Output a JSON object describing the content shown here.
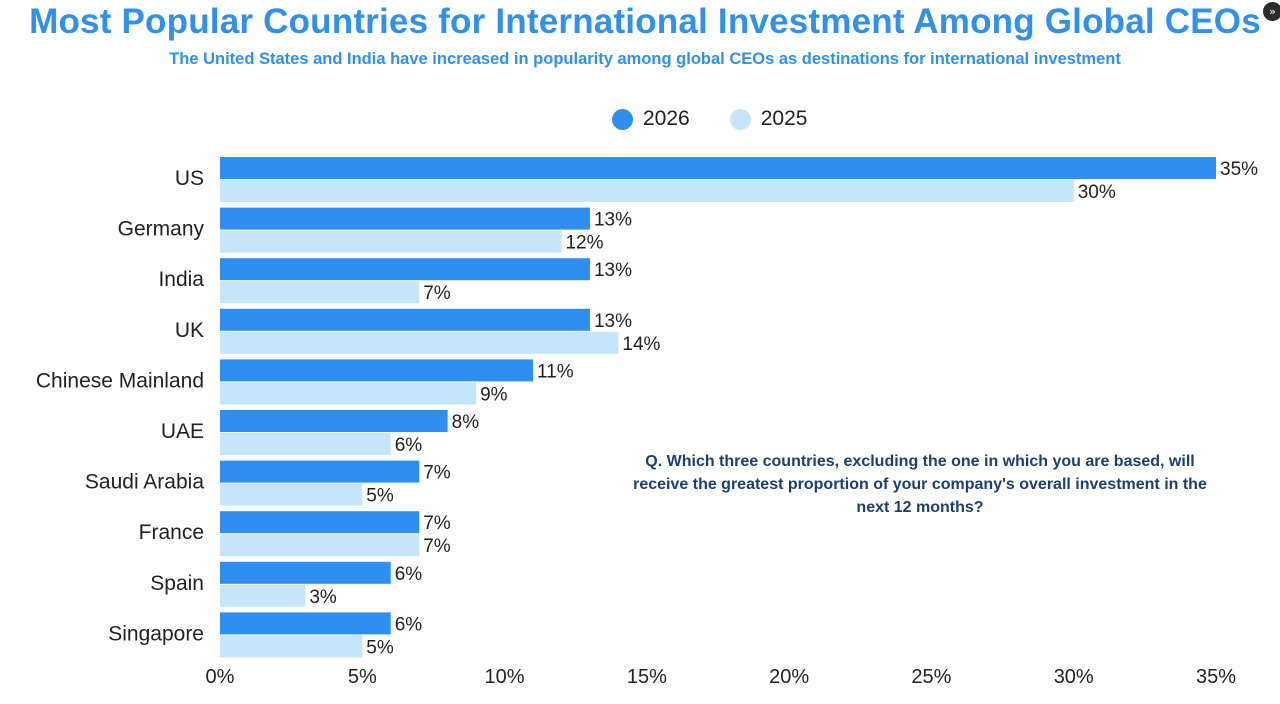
{
  "chart_data": {
    "type": "bar",
    "orientation": "horizontal",
    "title": "Most Popular Countries for International Investment Among Global CEOs",
    "subtitle": "The United States and India have increased in popularity among global CEOs as destinations for international investment",
    "categories": [
      "US",
      "Germany",
      "India",
      "UK",
      "Chinese Mainland",
      "UAE",
      "Saudi Arabia",
      "France",
      "Spain",
      "Singapore"
    ],
    "series": [
      {
        "name": "2026",
        "color": "#2e8ff0",
        "values": [
          35,
          13,
          13,
          13,
          11,
          8,
          7,
          7,
          6,
          6
        ]
      },
      {
        "name": "2025",
        "color": "#c5e6fa",
        "values": [
          30,
          12,
          7,
          14,
          9,
          6,
          5,
          7,
          3,
          5
        ]
      }
    ],
    "value_suffix": "%",
    "xlim": [
      0,
      35
    ],
    "xticks": [
      0,
      5,
      10,
      15,
      20,
      25,
      30,
      35
    ],
    "xtick_labels": [
      "0%",
      "5%",
      "10%",
      "15%",
      "20%",
      "25%",
      "30%",
      "35%"
    ],
    "grid": false,
    "legend_position": "top-center",
    "annotation": "Q. Which three countries, excluding the one in which you are based, will receive the greatest proportion of your company's overall investment in the next 12 months?"
  },
  "ui": {
    "corner_icon": "double-chevron-icon",
    "corner_glyph": "»"
  }
}
